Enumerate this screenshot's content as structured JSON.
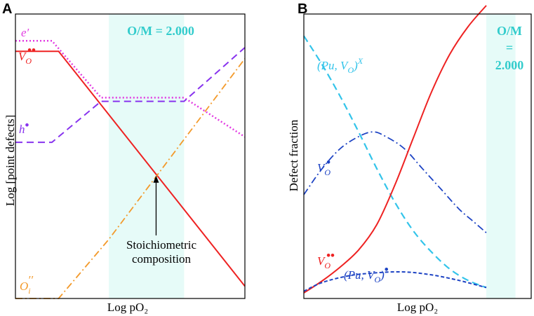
{
  "chart_data": [
    {
      "panel": "A",
      "type": "line",
      "xlabel": "Log pO₂",
      "ylabel": "Log [point defects]",
      "xlim": [
        0,
        10
      ],
      "ylim": [
        0,
        10
      ],
      "shaded_region": {
        "label": "O/M = 2.000",
        "x": [
          4.07,
          7.35
        ],
        "color": "#e6fbf8"
      },
      "annotation": {
        "text_lines": [
          "Stoichiometric",
          "composition"
        ],
        "points_to_x": 6.13
      },
      "series": [
        {
          "name": "electrons",
          "symbol": "e",
          "prime": "′",
          "color": "#e23ce2",
          "style": "dotted",
          "lw": 2.5,
          "x": [
            0,
            1.59,
            3.73,
            7.35,
            10
          ],
          "y": [
            9.06,
            9.06,
            7.06,
            7.06,
            5.68
          ]
        },
        {
          "name": "oxygen vacancies",
          "symbol": "V",
          "sub": "O",
          "sup": "••",
          "color": "#ee2222",
          "style": "solid",
          "lw": 2.0,
          "x": [
            0,
            1.88,
            10
          ],
          "y": [
            8.69,
            8.69,
            0.43
          ]
        },
        {
          "name": "holes",
          "symbol": "h",
          "sup": "•",
          "color": "#8833ee",
          "style": "dashed",
          "lw": 2.0,
          "x": [
            0,
            1.59,
            3.73,
            7.35,
            10
          ],
          "y": [
            5.49,
            5.49,
            6.93,
            6.93,
            8.82
          ]
        },
        {
          "name": "oxygen interstitials",
          "symbol": "O",
          "sub": "i",
          "sup": "′′",
          "color": "#f39a2b",
          "style": "dashdot",
          "lw": 1.8,
          "x": [
            0,
            1.88,
            4.07,
            10
          ],
          "y": [
            0,
            0,
            2.08,
            8.43
          ]
        }
      ]
    },
    {
      "panel": "B",
      "type": "line",
      "xlabel": "Log pO₂",
      "ylabel": "Defect fraction",
      "xlim": [
        0,
        10
      ],
      "ylim": [
        0,
        10
      ],
      "shaded_region": {
        "label_lines": [
          "O/M",
          "=",
          "2.000"
        ],
        "x": [
          10,
          11.6
        ],
        "color": "#e6fbf8"
      },
      "series": [
        {
          "name": "(Pu,V_O)^X",
          "label": "(Pu, V",
          "label_sub": "O",
          "label_tail": ")",
          "label_sup": "X",
          "color": "#33c4ea",
          "style": "dashed",
          "lw": 2.2,
          "x": [
            0,
            1.0,
            2.0,
            3.0,
            4.0,
            5.0,
            6.0,
            7.0,
            8.0,
            9.0,
            10.0
          ],
          "y": [
            9.7,
            8.62,
            7.41,
            6.08,
            4.69,
            3.41,
            2.34,
            1.54,
            0.9,
            0.47,
            0.2
          ]
        },
        {
          "name": "V_O^•",
          "label": "V",
          "label_sub": "O",
          "label_sup": "•",
          "color": "#1e44c4",
          "style": "dashdot",
          "lw": 1.8,
          "x": [
            0,
            1.0,
            2.0,
            3.0,
            3.8,
            4.5,
            5.5,
            6.5,
            7.5,
            8.5,
            9.3,
            10.0
          ],
          "y": [
            3.71,
            4.69,
            5.45,
            5.9,
            6.08,
            5.9,
            5.45,
            4.69,
            3.93,
            3.17,
            2.69,
            2.27
          ]
        },
        {
          "name": "V_O^••",
          "label": "V",
          "label_sub": "O",
          "label_sup": "••",
          "color": "#ee2222",
          "style": "solid",
          "lw": 2.0,
          "x": [
            0,
            1.0,
            2.0,
            3.0,
            4.0,
            5.0,
            6.0,
            7.0,
            8.0,
            9.0,
            10.0
          ],
          "y": [
            0.0,
            0.45,
            0.98,
            1.62,
            2.58,
            4.09,
            5.85,
            7.59,
            9.01,
            10.05,
            10.85
          ]
        },
        {
          "name": "(Pu,V_O)^•",
          "label": "(Pu, V",
          "label_sub": "O",
          "label_tail": ")",
          "label_sup": "•",
          "color": "#1e44c4",
          "style": "dashed-short",
          "lw": 2.0,
          "x": [
            0,
            1.0,
            2.5,
            4.0,
            5.5,
            7.0,
            8.5,
            10.0
          ],
          "y": [
            0.06,
            0.39,
            0.65,
            0.76,
            0.79,
            0.68,
            0.47,
            0.2
          ]
        }
      ]
    }
  ],
  "panel_letters": [
    "A",
    "B"
  ]
}
